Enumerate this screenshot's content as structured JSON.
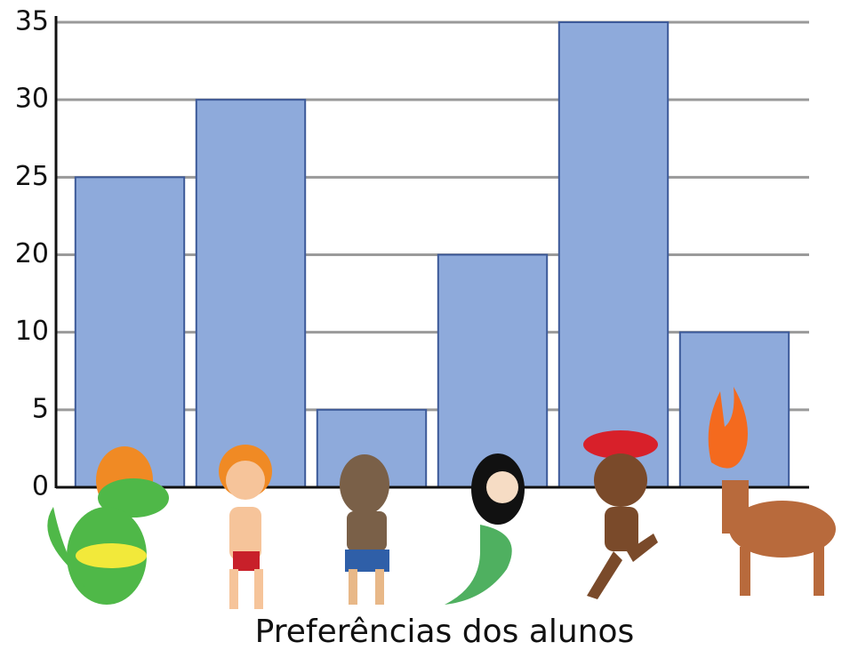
{
  "chart_data": {
    "type": "bar",
    "title": "Preferências dos alunos",
    "categories": [
      null,
      null,
      null,
      null,
      null,
      null
    ],
    "values": [
      25,
      30,
      5,
      20,
      35,
      10
    ],
    "color": "#8eaadb",
    "ylim": [
      0,
      35
    ],
    "yticks": [
      0,
      5,
      10,
      20,
      25,
      30,
      35
    ],
    "grid": true
  }
}
